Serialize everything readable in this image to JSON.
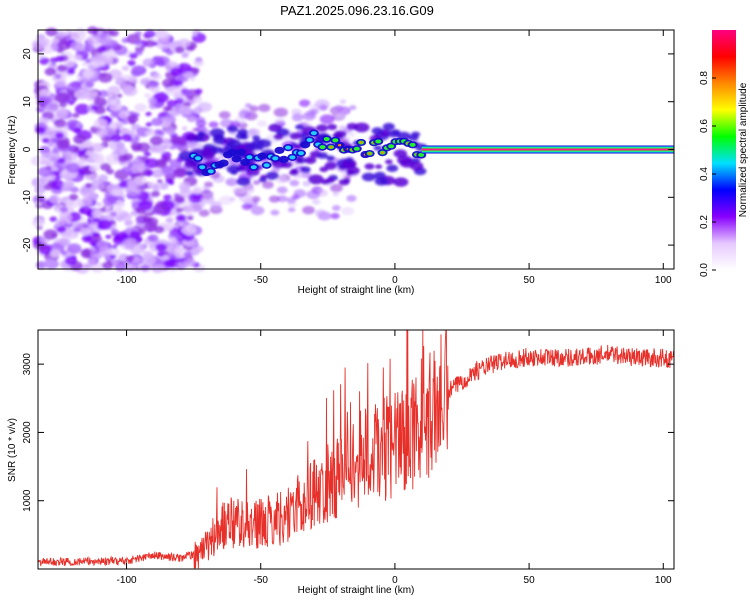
{
  "figure_title": "PAZ1.2025.096.23.16.G09",
  "colors": {
    "snr_line": "#e8302a",
    "frame": "#000000"
  },
  "chart_data": [
    {
      "type": "heatmap",
      "name": "spectrogram",
      "xlabel": "Height of straight line (km)",
      "ylabel": "Frequency (Hz)",
      "xlim": [
        -133,
        104
      ],
      "ylim": [
        -25,
        25
      ],
      "xticks": [
        -100,
        -50,
        0,
        50,
        100
      ],
      "yticks": [
        -20,
        -10,
        0,
        10,
        20
      ],
      "xtick_labels": [
        "-100",
        "-50",
        "0",
        "50",
        "100"
      ],
      "ytick_labels": [
        "-20",
        "-10",
        "0",
        "10",
        "20"
      ],
      "colorbar": {
        "label": "Normalized spectral amplitude",
        "range": [
          0,
          1
        ],
        "ticks": [
          0.0,
          0.2,
          0.4,
          0.6,
          0.8
        ],
        "tick_labels": [
          "0.0",
          "0.2",
          "0.4",
          "0.6",
          "0.8"
        ],
        "colormap": [
          "#ffffff",
          "#e6c8ff",
          "#8800ff",
          "#0000ff",
          "#00e0ff",
          "#00ff00",
          "#ffff00",
          "#ff8800",
          "#ff0000",
          "#ff0080"
        ]
      },
      "ridge": {
        "description_value_points_km_hz": [
          [
            -75,
            0
          ],
          [
            -70,
            -4
          ],
          [
            -60,
            -1
          ],
          [
            -50,
            -3
          ],
          [
            -40,
            -1
          ],
          [
            -30,
            2
          ],
          [
            -20,
            1
          ],
          [
            -10,
            0
          ],
          [
            0,
            1
          ],
          [
            10,
            0
          ],
          [
            104,
            0
          ]
        ],
        "peak_amplitude": 1.0
      }
    },
    {
      "type": "line",
      "name": "snr",
      "xlabel": "Height of straight line (km)",
      "ylabel": "SNR (10 * v/v)",
      "xlim": [
        -133,
        104
      ],
      "ylim": [
        0,
        3500
      ],
      "xticks": [
        -100,
        -50,
        0,
        50,
        100
      ],
      "yticks": [
        1000,
        2000,
        3000
      ],
      "xtick_labels": [
        "-100",
        "-50",
        "0",
        "50",
        "100"
      ],
      "ytick_labels": [
        "1000",
        "2000",
        "3000"
      ],
      "trend": {
        "x": [
          -133,
          -100,
          -90,
          -80,
          -72,
          -65,
          -60,
          -50,
          -40,
          -30,
          -20,
          -10,
          0,
          10,
          20,
          30,
          40,
          50,
          60,
          70,
          80,
          90,
          104
        ],
        "y": [
          100,
          120,
          200,
          160,
          250,
          600,
          700,
          650,
          800,
          1100,
          1400,
          1700,
          1800,
          2100,
          2600,
          2900,
          3050,
          3100,
          3100,
          3100,
          3150,
          3100,
          3080
        ]
      }
    }
  ]
}
